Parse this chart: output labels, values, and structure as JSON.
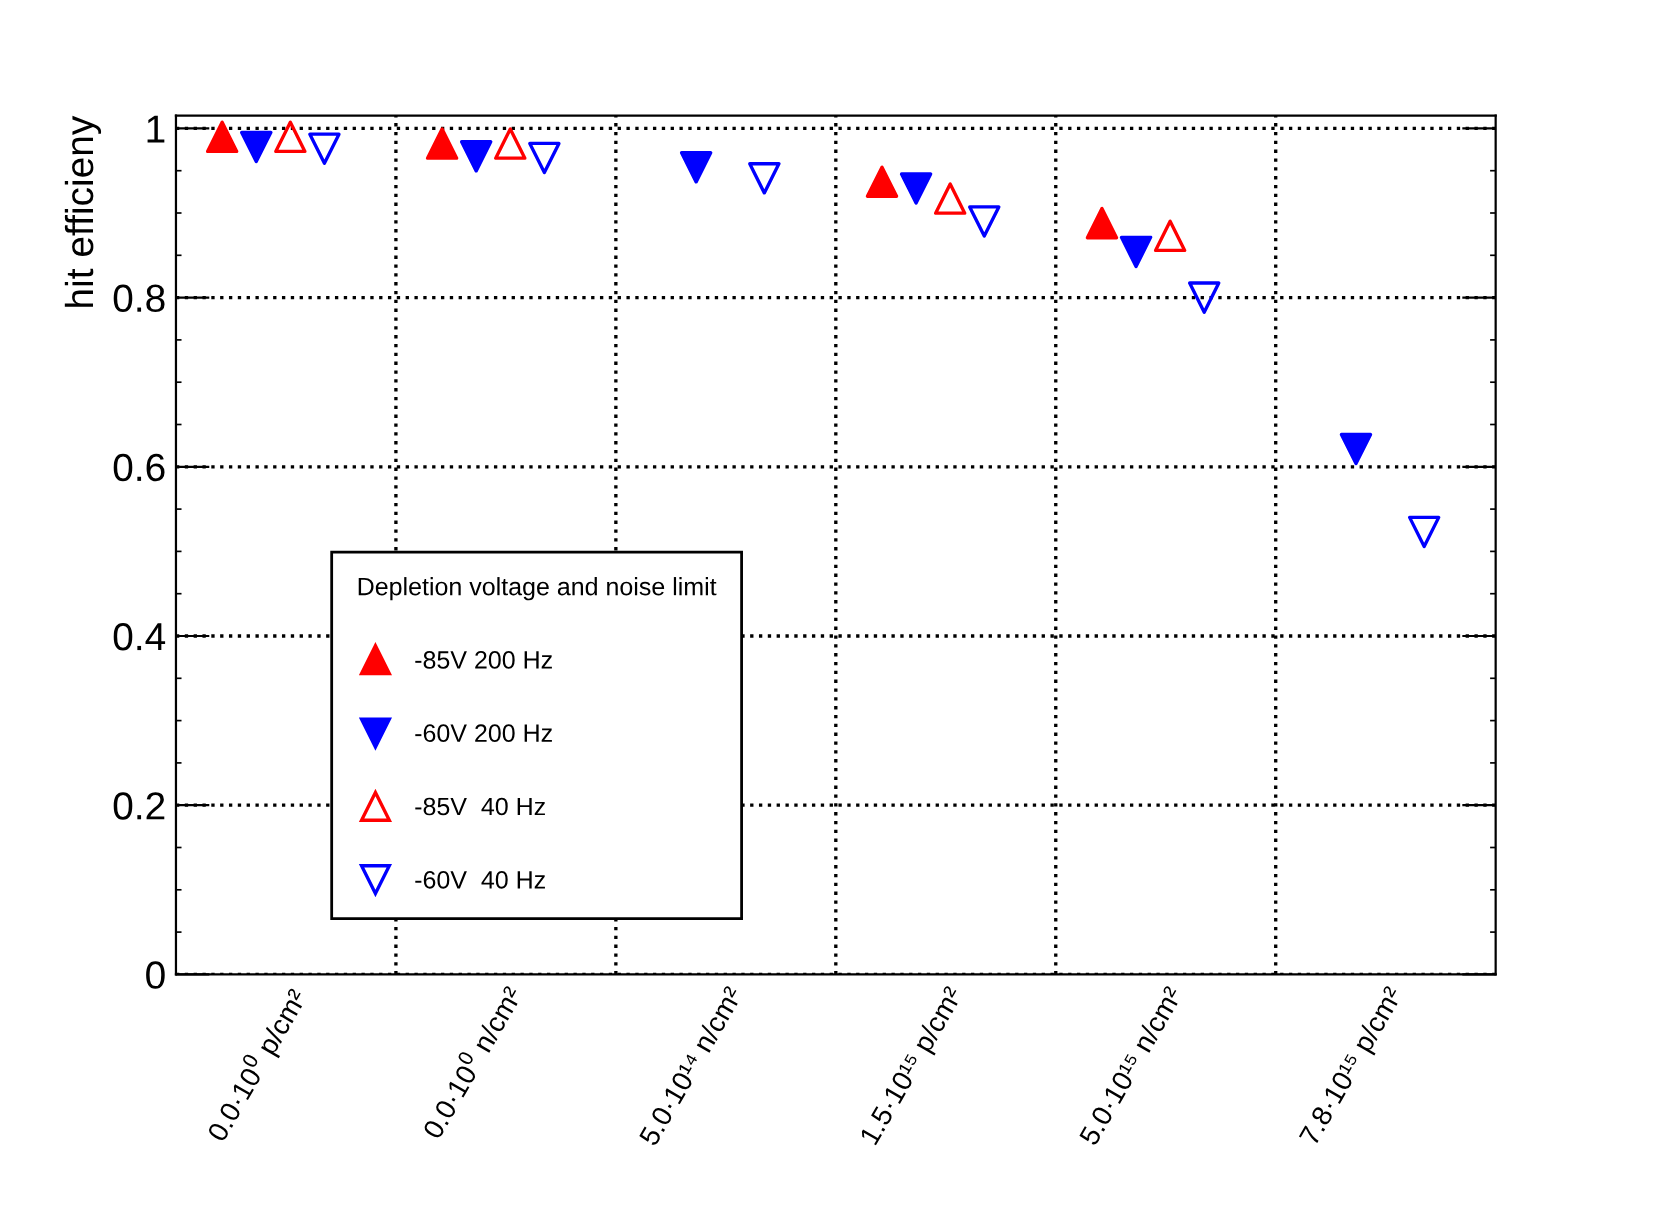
{
  "chart_data": {
    "type": "scatter",
    "ylabel": "hit efficieny",
    "legend_title": "Depletion voltage and noise limit",
    "categories": [
      "0.0·10$^{0}$ p/cm²",
      "0.0·10$^{0}$ n/cm²",
      "5.0·10¹⁴ n/cm²",
      "1.5·10¹⁵ p/cm²",
      "5.0·10¹⁵ n/cm²",
      "7.8·10¹⁵ p/cm²"
    ],
    "series": [
      {
        "name": "-85V 200 Hz",
        "color": "#ff0000",
        "marker": "triangle-up",
        "values": [
          0.99,
          0.982,
          null,
          0.937,
          0.888,
          null
        ]
      },
      {
        "name": "-60V 200 Hz",
        "color": "#0000ff",
        "marker": "triangle-down",
        "values": [
          0.978,
          0.967,
          0.954,
          0.929,
          0.854,
          0.621
        ]
      },
      {
        "name": "-85V  40 Hz",
        "color": "#ff0000",
        "marker": "triangle-up-open",
        "values": [
          0.99,
          0.982,
          null,
          0.917,
          0.873,
          null
        ]
      },
      {
        "name": "-60V  40 Hz",
        "color": "#0000ff",
        "marker": "triangle-down-open",
        "values": [
          0.976,
          0.965,
          0.941,
          0.89,
          0.8,
          0.523
        ]
      }
    ],
    "ylim": [
      0,
      1.015
    ],
    "yticks": [
      0,
      0.2,
      0.4,
      0.6,
      0.8,
      1
    ],
    "grid": true,
    "legend": "bottom left"
  }
}
